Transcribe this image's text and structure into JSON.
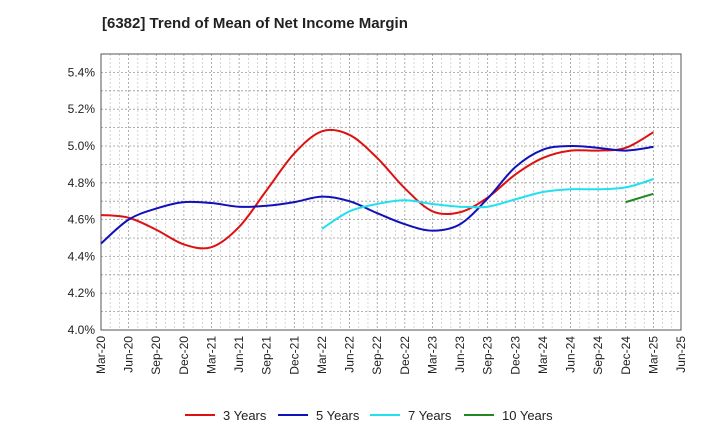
{
  "chart_data": {
    "type": "line",
    "title": "[6382]  Trend of Mean of Net Income Margin",
    "xlabel": "",
    "ylabel": "",
    "x_categories": [
      "Mar-20",
      "Jun-20",
      "Sep-20",
      "Dec-20",
      "Mar-21",
      "Jun-21",
      "Sep-21",
      "Dec-21",
      "Mar-22",
      "Jun-22",
      "Sep-22",
      "Dec-22",
      "Mar-23",
      "Jun-23",
      "Sep-23",
      "Dec-23",
      "Mar-24",
      "Jun-24",
      "Sep-24",
      "Dec-24",
      "Mar-25",
      "Jun-25"
    ],
    "y_ticks": [
      "4.0%",
      "4.2%",
      "4.4%",
      "4.6%",
      "4.8%",
      "5.0%",
      "5.2%",
      "5.4%"
    ],
    "ylim": [
      4.0,
      5.5
    ],
    "grid": "dashed",
    "legend_position": "bottom",
    "series": [
      {
        "name": "3 Years",
        "color": "#dd1111",
        "points": [
          [
            "Mar-20",
            4.625
          ],
          [
            "Jun-20",
            4.61
          ],
          [
            "Sep-20",
            4.545
          ],
          [
            "Dec-20",
            4.465
          ],
          [
            "Mar-21",
            4.45
          ],
          [
            "Jun-21",
            4.56
          ],
          [
            "Sep-21",
            4.76
          ],
          [
            "Dec-21",
            4.96
          ],
          [
            "Mar-22",
            5.08
          ],
          [
            "Jun-22",
            5.06
          ],
          [
            "Sep-22",
            4.935
          ],
          [
            "Dec-22",
            4.77
          ],
          [
            "Mar-23",
            4.645
          ],
          [
            "Jun-23",
            4.64
          ],
          [
            "Sep-23",
            4.72
          ],
          [
            "Dec-23",
            4.845
          ],
          [
            "Mar-24",
            4.935
          ],
          [
            "Jun-24",
            4.975
          ],
          [
            "Sep-24",
            4.975
          ],
          [
            "Dec-24",
            4.99
          ],
          [
            "Mar-25",
            5.075
          ]
        ]
      },
      {
        "name": "5 Years",
        "color": "#1111bb",
        "points": [
          [
            "Mar-20",
            4.47
          ],
          [
            "Jun-20",
            4.6
          ],
          [
            "Sep-20",
            4.66
          ],
          [
            "Dec-20",
            4.695
          ],
          [
            "Mar-21",
            4.69
          ],
          [
            "Jun-21",
            4.67
          ],
          [
            "Sep-21",
            4.675
          ],
          [
            "Dec-21",
            4.695
          ],
          [
            "Mar-22",
            4.725
          ],
          [
            "Jun-22",
            4.7
          ],
          [
            "Sep-22",
            4.635
          ],
          [
            "Dec-22",
            4.575
          ],
          [
            "Mar-23",
            4.54
          ],
          [
            "Jun-23",
            4.575
          ],
          [
            "Sep-23",
            4.715
          ],
          [
            "Dec-23",
            4.885
          ],
          [
            "Mar-24",
            4.98
          ],
          [
            "Jun-24",
            5.0
          ],
          [
            "Sep-24",
            4.99
          ],
          [
            "Dec-24",
            4.975
          ],
          [
            "Mar-25",
            4.995
          ]
        ]
      },
      {
        "name": "7 Years",
        "color": "#22e0ee",
        "points": [
          [
            "Mar-22",
            4.55
          ],
          [
            "Jun-22",
            4.645
          ],
          [
            "Sep-22",
            4.685
          ],
          [
            "Dec-22",
            4.705
          ],
          [
            "Mar-23",
            4.685
          ],
          [
            "Jun-23",
            4.67
          ],
          [
            "Sep-23",
            4.67
          ],
          [
            "Dec-23",
            4.71
          ],
          [
            "Mar-24",
            4.75
          ],
          [
            "Jun-24",
            4.765
          ],
          [
            "Sep-24",
            4.765
          ],
          [
            "Dec-24",
            4.775
          ],
          [
            "Mar-25",
            4.82
          ]
        ]
      },
      {
        "name": "10 Years",
        "color": "#228822",
        "points": [
          [
            "Dec-24",
            4.695
          ],
          [
            "Mar-25",
            4.74
          ]
        ]
      }
    ]
  }
}
